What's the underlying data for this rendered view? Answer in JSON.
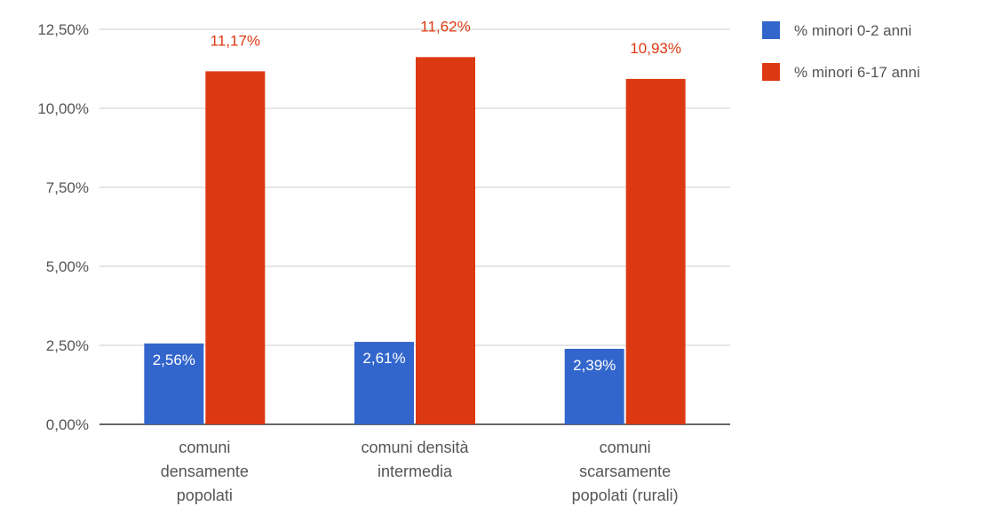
{
  "chart_data": {
    "type": "bar",
    "title": "",
    "xlabel": "",
    "ylabel": "",
    "categories": [
      [
        "comuni",
        "densamente",
        "popolati"
      ],
      [
        "comuni densità",
        "intermedia"
      ],
      [
        "comuni",
        "scarsamente",
        "popolati (rurali)"
      ]
    ],
    "series": [
      {
        "name": "% minori 0-2 anni",
        "color": "#3366cc",
        "values": [
          2.56,
          2.61,
          2.39
        ],
        "labels": [
          "2,56%",
          "2,61%",
          "2,39%"
        ],
        "label_color": "#ffffff",
        "label_position": "inside-top"
      },
      {
        "name": "% minori 6-17 anni",
        "color": "#dc3912",
        "values": [
          11.17,
          11.62,
          10.93
        ],
        "labels": [
          "11,17%",
          "11,62%",
          "10,93%"
        ],
        "label_color": "#dc3912",
        "label_position": "outside-top"
      }
    ],
    "ylim": [
      0,
      12.5
    ],
    "yticks": [
      0,
      2.5,
      5,
      7.5,
      10,
      12.5
    ],
    "ytick_labels": [
      "0,00%",
      "2,50%",
      "5,00%",
      "7,50%",
      "10,00%",
      "12,50%"
    ],
    "grid": true,
    "legend_position": "right"
  }
}
